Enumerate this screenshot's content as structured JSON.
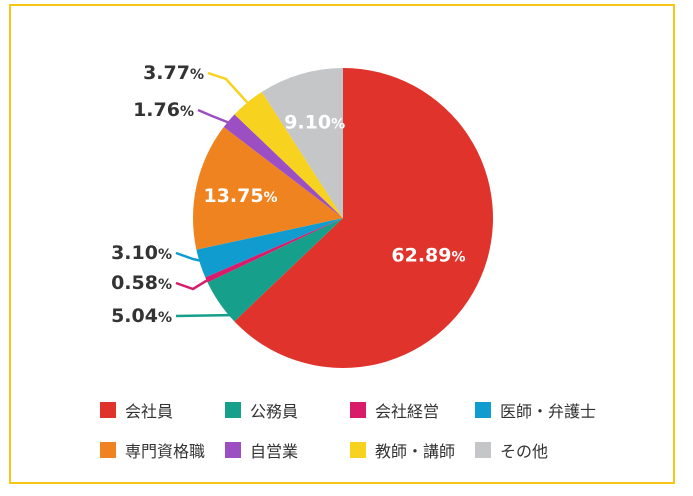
{
  "chart_data": {
    "type": "pie",
    "slices": [
      {
        "label": "会社員",
        "value": 62.89,
        "display": "62.89",
        "color": "#e0332b"
      },
      {
        "label": "公務員",
        "value": 5.04,
        "display": "5.04",
        "color": "#16a08b"
      },
      {
        "label": "会社経営",
        "value": 0.58,
        "display": "0.58",
        "color": "#d81c6a"
      },
      {
        "label": "医師・弁護士",
        "value": 3.1,
        "display": "3.10",
        "color": "#119ccf"
      },
      {
        "label": "専門資格職",
        "value": 13.75,
        "display": "13.75",
        "color": "#ef8320"
      },
      {
        "label": "自営業",
        "value": 1.76,
        "display": "1.76",
        "color": "#9c4fc3"
      },
      {
        "label": "教師・講師",
        "value": 3.77,
        "display": "3.77",
        "color": "#f7d21e"
      },
      {
        "label": "その他",
        "value": 9.1,
        "display": "9.10",
        "color": "#c4c6c8"
      }
    ],
    "unit": "%",
    "legend": [
      "会社員",
      "公務員",
      "会社経営",
      "医師・弁護士",
      "専門資格職",
      "自営業",
      "教師・講師",
      "その他"
    ],
    "legend_position": "bottom"
  }
}
